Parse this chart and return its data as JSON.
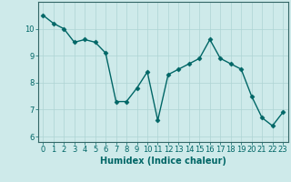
{
  "x": [
    0,
    1,
    2,
    3,
    4,
    5,
    6,
    7,
    8,
    9,
    10,
    11,
    12,
    13,
    14,
    15,
    16,
    17,
    18,
    19,
    20,
    21,
    22,
    23
  ],
  "y": [
    10.5,
    10.2,
    10.0,
    9.5,
    9.6,
    9.5,
    9.1,
    7.3,
    7.3,
    7.8,
    8.4,
    6.6,
    8.3,
    8.5,
    8.7,
    8.9,
    9.6,
    8.9,
    8.7,
    8.5,
    7.5,
    6.7,
    6.4,
    6.9
  ],
  "line_color": "#006666",
  "marker": "D",
  "markersize": 2.5,
  "linewidth": 1.0,
  "xlabel": "Humidex (Indice chaleur)",
  "xlabel_fontsize": 7,
  "ylim": [
    5.8,
    11.0
  ],
  "xlim": [
    -0.5,
    23.5
  ],
  "yticks": [
    6,
    7,
    8,
    9,
    10
  ],
  "xticks": [
    0,
    1,
    2,
    3,
    4,
    5,
    6,
    7,
    8,
    9,
    10,
    11,
    12,
    13,
    14,
    15,
    16,
    17,
    18,
    19,
    20,
    21,
    22,
    23
  ],
  "xtick_labels": [
    "0",
    "1",
    "2",
    "3",
    "4",
    "5",
    "6",
    "7",
    "8",
    "9",
    "10",
    "11",
    "12",
    "13",
    "14",
    "15",
    "16",
    "17",
    "18",
    "19",
    "20",
    "21",
    "22",
    "23"
  ],
  "grid_color": "#aed4d4",
  "bg_color": "#ceeaea",
  "tick_fontsize": 6,
  "fig_bg_color": "#ceeaea",
  "spine_color": "#336666"
}
